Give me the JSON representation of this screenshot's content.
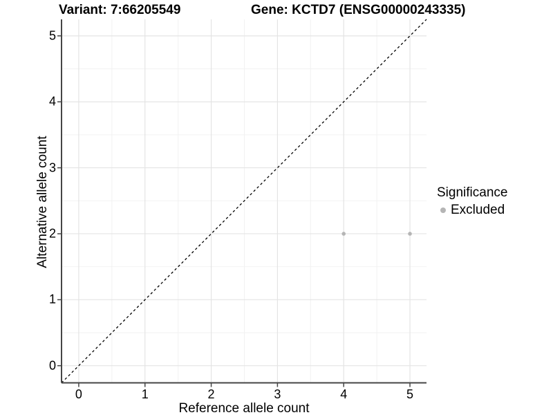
{
  "titles": {
    "variant": "Variant: 7:66205549",
    "gene": "Gene: KCTD7 (ENSG00000243335)"
  },
  "chart_data": {
    "type": "scatter",
    "title_left": "Variant: 7:66205549",
    "title_right": "Gene: KCTD7 (ENSG00000243335)",
    "xlabel": "Reference allele count",
    "ylabel": "Alternative allele count",
    "x_ticks": [
      0,
      1,
      2,
      3,
      4,
      5
    ],
    "y_ticks": [
      0,
      1,
      2,
      3,
      4,
      5
    ],
    "xlim": [
      -0.26,
      5.25
    ],
    "ylim": [
      -0.26,
      5.25
    ],
    "grid": "major and minor gridlines on, light grey on white",
    "identity_line": {
      "style": "dashed",
      "color": "#000000",
      "from": [
        -0.26,
        -0.26
      ],
      "to": [
        5.25,
        5.25
      ]
    },
    "series": [
      {
        "name": "Excluded",
        "color": "#b5b5b5",
        "points": [
          {
            "x": 4,
            "y": 2
          },
          {
            "x": 5,
            "y": 2
          }
        ]
      }
    ],
    "legend": {
      "title": "Significance",
      "position": "right",
      "entries": [
        {
          "label": "Excluded",
          "color": "#b5b5b5"
        }
      ]
    }
  },
  "colors": {
    "background": "#ffffff",
    "major_grid": "#e4e4e4",
    "minor_grid": "#f2f2f2",
    "axis_line": "#454545",
    "tick_mark": "#454545",
    "text": "#000000",
    "point": "#b5b5b5"
  }
}
